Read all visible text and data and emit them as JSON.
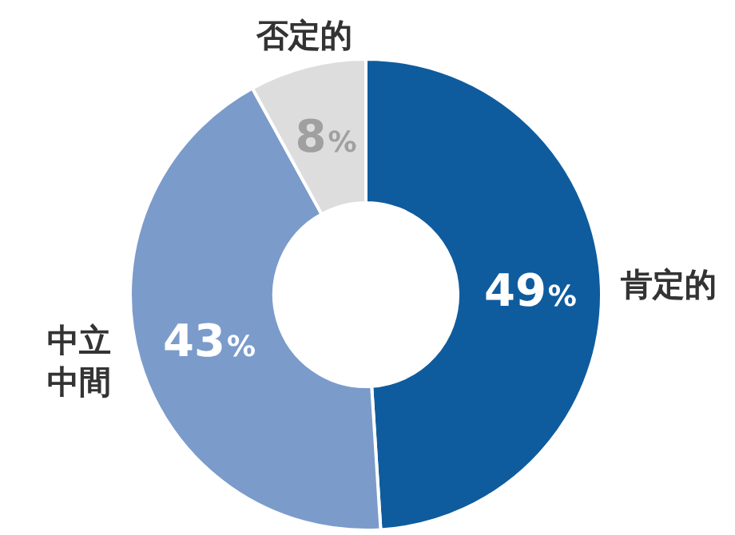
{
  "chart_data": {
    "type": "donut",
    "categories": [
      "肯定的",
      "中立中間",
      "否定的"
    ],
    "values": [
      49,
      43,
      8
    ],
    "colors": [
      "#0e5c9e",
      "#7b9bcb",
      "#dddddd"
    ],
    "value_labels": [
      "49%",
      "43%",
      "8%"
    ]
  }
}
